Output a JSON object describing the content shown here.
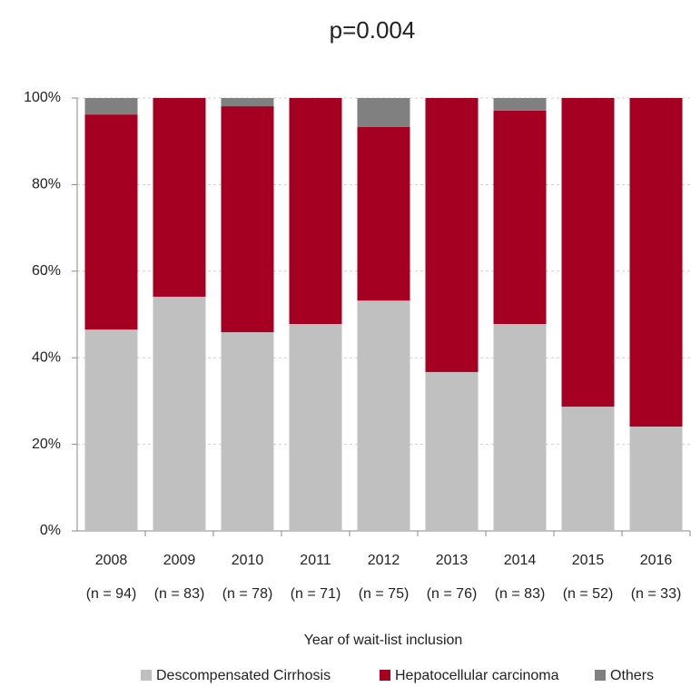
{
  "chart_data": {
    "type": "stacked_bar",
    "title": "p=0.004",
    "x_label": "Year of wait-list inclusion",
    "categories": [
      "2008",
      "2009",
      "2010",
      "2011",
      "2012",
      "2013",
      "2014",
      "2015",
      "2016"
    ],
    "category_sublabels": [
      "(n = 94)",
      "(n = 83)",
      "(n = 78)",
      "(n = 71)",
      "(n = 75)",
      "(n = 76)",
      "(n = 83)",
      "(n = 52)",
      "(n = 33)"
    ],
    "series": [
      {
        "name": "Descompensated Cirrhosis",
        "color": "#c0c0c0",
        "values": [
          46.5,
          54.1,
          45.9,
          47.8,
          53.2,
          36.7,
          47.8,
          28.7,
          24.1
        ]
      },
      {
        "name": "Hepatocellular carcinoma",
        "color": "#a50021",
        "values": [
          49.7,
          45.9,
          52.2,
          52.2,
          40.1,
          63.3,
          49.3,
          71.3,
          75.9
        ]
      },
      {
        "name": "Others",
        "color": "#808080",
        "values": [
          3.8,
          0,
          1.9,
          0,
          6.7,
          0,
          2.9,
          0,
          0
        ]
      }
    ],
    "ylim": [
      0,
      100
    ],
    "yticks": [
      {
        "value": 0,
        "label": "0%"
      },
      {
        "value": 20,
        "label": "20%"
      },
      {
        "value": 40,
        "label": "40%"
      },
      {
        "value": 60,
        "label": "60%"
      },
      {
        "value": 80,
        "label": "80%"
      },
      {
        "value": 100,
        "label": "100%"
      }
    ],
    "grid": true,
    "legend": "bottom"
  }
}
